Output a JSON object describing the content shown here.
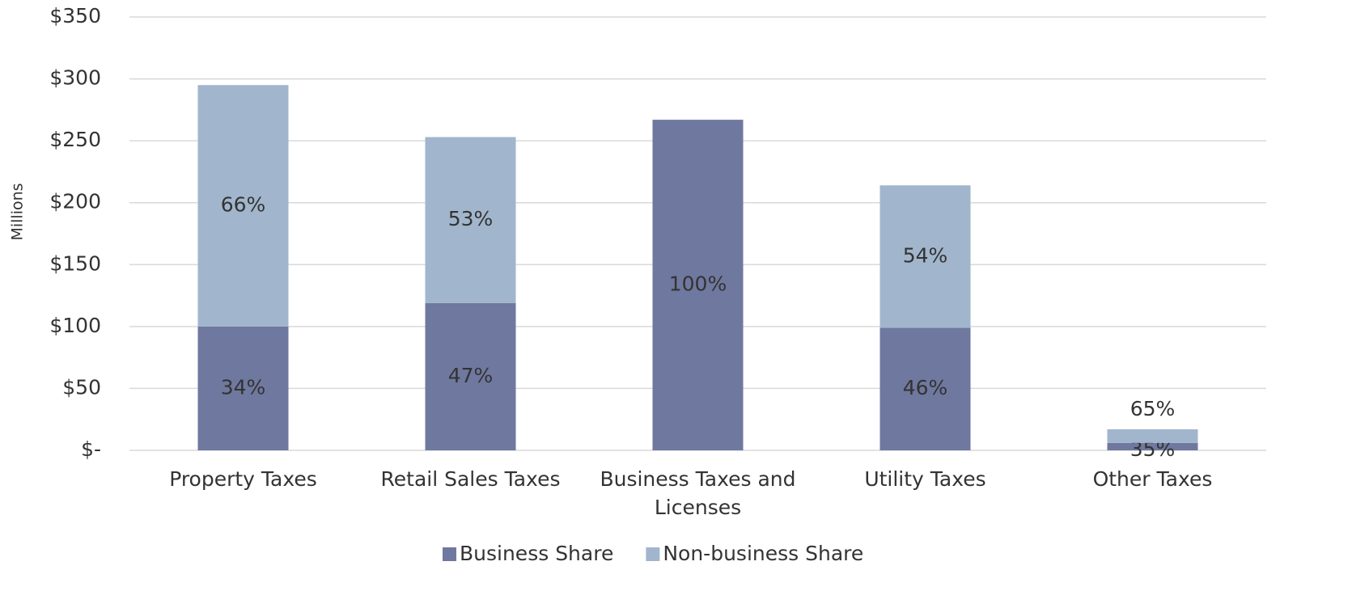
{
  "chart_data": {
    "type": "stacked_bar",
    "y_label": "Millions",
    "categories": [
      "Property Taxes",
      "Retail Sales Taxes",
      "Business Taxes and Licenses",
      "Utility Taxes",
      "Other Taxes"
    ],
    "series": [
      {
        "name": "Business Share",
        "color": "#6f789f",
        "values": [
          100,
          119,
          267,
          99,
          6
        ],
        "percent_labels": [
          "34%",
          "47%",
          "100%",
          "46%",
          "35%"
        ]
      },
      {
        "name": "Non-business Share",
        "color": "#a1b6cc",
        "values": [
          195,
          134,
          0,
          115,
          11
        ],
        "percent_labels": [
          "66%",
          "53%",
          null,
          "54%",
          "65%"
        ]
      }
    ],
    "ylim": [
      0,
      350
    ],
    "yticks": [
      {
        "value": 0,
        "label": "$-"
      },
      {
        "value": 50,
        "label": "$50"
      },
      {
        "value": 100,
        "label": "$100"
      },
      {
        "value": 150,
        "label": "$150"
      },
      {
        "value": 200,
        "label": "$200"
      },
      {
        "value": 250,
        "label": "$250"
      },
      {
        "value": 300,
        "label": "$300"
      },
      {
        "value": 350,
        "label": "$350"
      }
    ],
    "grid": true,
    "legend": "bottom"
  }
}
